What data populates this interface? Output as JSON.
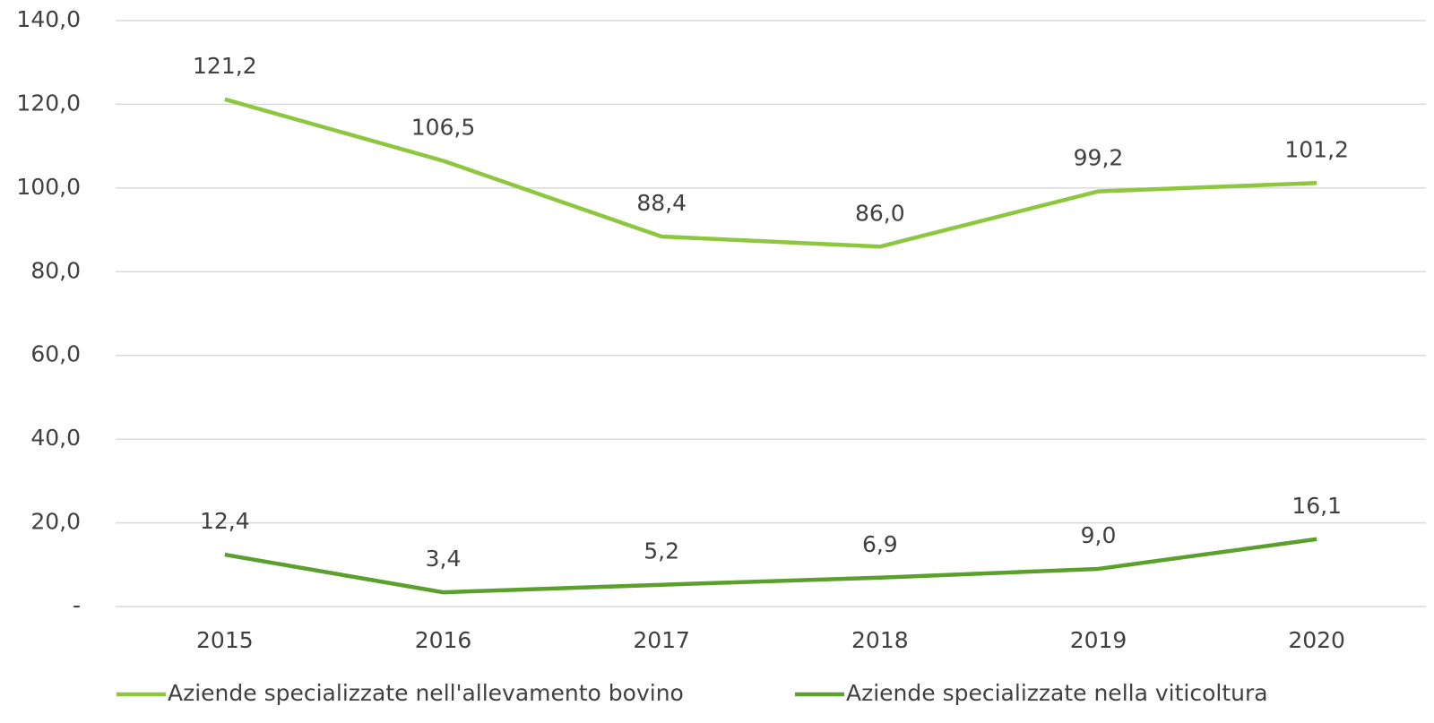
{
  "chart_data": {
    "type": "line",
    "categories": [
      "2015",
      "2016",
      "2017",
      "2018",
      "2019",
      "2020"
    ],
    "series": [
      {
        "name": "Aziende specializzate nell'allevamento bovino",
        "color": "#8dc63f",
        "values": [
          121.2,
          106.5,
          88.4,
          86.0,
          99.2,
          101.2
        ],
        "value_labels": [
          "121,2",
          "106,5",
          "88,4",
          "86,0",
          "99,2",
          "101,2"
        ]
      },
      {
        "name": "Aziende specializzate nella viticoltura",
        "color": "#5b9f2c",
        "values": [
          12.4,
          3.4,
          5.2,
          6.9,
          9.0,
          16.1
        ],
        "value_labels": [
          "12,4",
          "3,4",
          "5,2",
          "6,9",
          "9,0",
          "16,1"
        ]
      }
    ],
    "ylim": [
      0,
      140
    ],
    "yticks": [
      {
        "value": 0,
        "label": "-"
      },
      {
        "value": 20,
        "label": "20,0"
      },
      {
        "value": 40,
        "label": "40,0"
      },
      {
        "value": 60,
        "label": "60,0"
      },
      {
        "value": 80,
        "label": "80,0"
      },
      {
        "value": 100,
        "label": "100,0"
      },
      {
        "value": 120,
        "label": "120,0"
      },
      {
        "value": 140,
        "label": "140,0"
      }
    ],
    "grid": true,
    "legend": "bottom"
  }
}
